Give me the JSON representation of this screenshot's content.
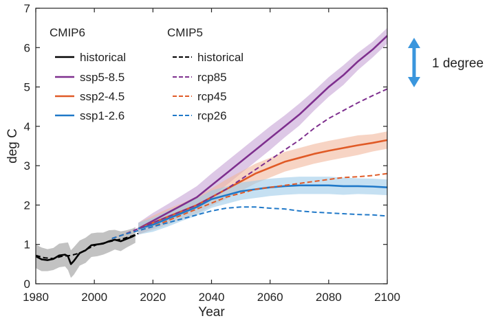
{
  "chart_data": {
    "type": "line",
    "title": "",
    "xlabel": "Year",
    "ylabel": "deg C",
    "xlim": [
      1980,
      2100
    ],
    "ylim": [
      0,
      7
    ],
    "xticks": [
      1980,
      2000,
      2020,
      2040,
      2060,
      2080,
      2100
    ],
    "yticks": [
      0,
      1,
      2,
      3,
      4,
      5,
      6,
      7
    ],
    "grid": false,
    "legend": {
      "placement": "top-left",
      "groups": [
        {
          "title": "CMIP6",
          "entries": [
            {
              "label": "historical",
              "style": "solid",
              "color": "#000000"
            },
            {
              "label": "ssp5-8.5",
              "style": "solid",
              "color": "#7e2f8e"
            },
            {
              "label": "ssp2-4.5",
              "style": "solid",
              "color": "#e05a26"
            },
            {
              "label": "ssp1-2.6",
              "style": "solid",
              "color": "#1f78c8"
            }
          ]
        },
        {
          "title": "CMIP5",
          "entries": [
            {
              "label": "historical",
              "style": "dashed",
              "color": "#000000"
            },
            {
              "label": "rcp85",
              "style": "dashed",
              "color": "#7e2f8e"
            },
            {
              "label": "rcp45",
              "style": "dashed",
              "color": "#e05a26"
            },
            {
              "label": "rcp26",
              "style": "dashed",
              "color": "#1f78c8"
            }
          ]
        }
      ]
    },
    "annotation": {
      "text": "1 degree",
      "span_degC": 1,
      "color": "#3a96dd"
    },
    "series": [
      {
        "name": "historical",
        "group": "CMIP6",
        "style": "solid",
        "color": "#000000",
        "band_color": "#9a9a9a",
        "x": [
          1980,
          1982,
          1984,
          1986,
          1988,
          1990,
          1991,
          1992,
          1993,
          1995,
          1997,
          1999,
          2001,
          2003,
          2005,
          2007,
          2009,
          2011,
          2013,
          2014
        ],
        "y": [
          0.7,
          0.62,
          0.6,
          0.63,
          0.72,
          0.74,
          0.7,
          0.5,
          0.58,
          0.78,
          0.85,
          0.98,
          1.0,
          1.02,
          1.08,
          1.12,
          1.08,
          1.14,
          1.2,
          1.24
        ],
        "band": [
          0.3,
          0.3,
          0.28,
          0.28,
          0.3,
          0.3,
          0.35,
          0.35,
          0.35,
          0.32,
          0.32,
          0.3,
          0.3,
          0.28,
          0.28,
          0.25,
          0.25,
          0.22,
          0.2,
          0.2
        ]
      },
      {
        "name": "historical",
        "group": "CMIP5",
        "style": "dashed",
        "color": "#000000",
        "x": [
          1980,
          1983,
          1986,
          1989,
          1992,
          1995,
          1998,
          2001,
          2004,
          2007,
          2010,
          2013,
          2015
        ],
        "y": [
          0.72,
          0.66,
          0.64,
          0.7,
          0.72,
          0.78,
          0.9,
          1.0,
          1.05,
          1.1,
          1.15,
          1.22,
          1.28
        ]
      },
      {
        "name": "ssp5-8.5",
        "group": "CMIP6",
        "style": "solid",
        "color": "#7e2f8e",
        "band_color": "#c6a3d6",
        "x": [
          2015,
          2020,
          2025,
          2030,
          2035,
          2040,
          2045,
          2050,
          2055,
          2060,
          2065,
          2070,
          2075,
          2080,
          2085,
          2090,
          2095,
          2100
        ],
        "y": [
          1.4,
          1.6,
          1.8,
          2.0,
          2.2,
          2.5,
          2.8,
          3.1,
          3.4,
          3.7,
          4.0,
          4.3,
          4.65,
          5.0,
          5.3,
          5.65,
          5.95,
          6.3
        ],
        "band": [
          0.15,
          0.2,
          0.22,
          0.25,
          0.28,
          0.3,
          0.3,
          0.3,
          0.3,
          0.3,
          0.28,
          0.28,
          0.25,
          0.25,
          0.25,
          0.22,
          0.2,
          0.2
        ]
      },
      {
        "name": "ssp2-4.5",
        "group": "CMIP6",
        "style": "solid",
        "color": "#e05a26",
        "band_color": "#f2b89c",
        "x": [
          2015,
          2020,
          2025,
          2030,
          2035,
          2040,
          2045,
          2050,
          2055,
          2060,
          2065,
          2070,
          2075,
          2080,
          2085,
          2090,
          2095,
          2100
        ],
        "y": [
          1.4,
          1.55,
          1.7,
          1.85,
          2.0,
          2.2,
          2.4,
          2.6,
          2.8,
          2.95,
          3.1,
          3.2,
          3.3,
          3.38,
          3.45,
          3.52,
          3.58,
          3.65
        ],
        "band": [
          0.15,
          0.18,
          0.2,
          0.2,
          0.22,
          0.22,
          0.25,
          0.25,
          0.25,
          0.25,
          0.25,
          0.25,
          0.25,
          0.25,
          0.25,
          0.25,
          0.22,
          0.22
        ]
      },
      {
        "name": "ssp1-2.6",
        "group": "CMIP6",
        "style": "solid",
        "color": "#1f78c8",
        "band_color": "#9fcbea",
        "x": [
          2015,
          2020,
          2025,
          2030,
          2035,
          2040,
          2045,
          2050,
          2055,
          2060,
          2065,
          2070,
          2075,
          2080,
          2085,
          2090,
          2095,
          2100
        ],
        "y": [
          1.4,
          1.5,
          1.65,
          1.8,
          1.95,
          2.15,
          2.25,
          2.35,
          2.4,
          2.45,
          2.48,
          2.5,
          2.5,
          2.5,
          2.48,
          2.48,
          2.47,
          2.45
        ],
        "band": [
          0.15,
          0.18,
          0.2,
          0.2,
          0.22,
          0.22,
          0.22,
          0.22,
          0.22,
          0.22,
          0.22,
          0.22,
          0.22,
          0.22,
          0.22,
          0.2,
          0.2,
          0.2
        ]
      },
      {
        "name": "rcp85",
        "group": "CMIP5",
        "style": "dashed",
        "color": "#7e2f8e",
        "x": [
          2006,
          2010,
          2015,
          2020,
          2025,
          2030,
          2035,
          2040,
          2045,
          2050,
          2055,
          2060,
          2065,
          2070,
          2075,
          2080,
          2085,
          2090,
          2095,
          2100
        ],
        "y": [
          1.15,
          1.25,
          1.4,
          1.55,
          1.7,
          1.85,
          2.0,
          2.2,
          2.4,
          2.65,
          2.9,
          3.15,
          3.4,
          3.65,
          3.95,
          4.2,
          4.4,
          4.6,
          4.78,
          4.95
        ]
      },
      {
        "name": "rcp45",
        "group": "CMIP5",
        "style": "dashed",
        "color": "#e05a26",
        "x": [
          2006,
          2010,
          2015,
          2020,
          2025,
          2030,
          2035,
          2040,
          2045,
          2050,
          2055,
          2060,
          2065,
          2070,
          2075,
          2080,
          2085,
          2090,
          2095,
          2100
        ],
        "y": [
          1.15,
          1.25,
          1.35,
          1.45,
          1.6,
          1.75,
          1.9,
          2.05,
          2.2,
          2.3,
          2.4,
          2.45,
          2.5,
          2.55,
          2.6,
          2.65,
          2.7,
          2.72,
          2.75,
          2.8
        ]
      },
      {
        "name": "rcp26",
        "group": "CMIP5",
        "style": "dashed",
        "color": "#1f78c8",
        "x": [
          2006,
          2010,
          2015,
          2020,
          2025,
          2030,
          2035,
          2040,
          2045,
          2050,
          2055,
          2060,
          2065,
          2070,
          2075,
          2080,
          2085,
          2090,
          2095,
          2100
        ],
        "y": [
          1.15,
          1.25,
          1.35,
          1.45,
          1.55,
          1.65,
          1.75,
          1.85,
          1.92,
          1.95,
          1.95,
          1.92,
          1.9,
          1.85,
          1.82,
          1.8,
          1.78,
          1.76,
          1.75,
          1.72
        ]
      }
    ]
  }
}
